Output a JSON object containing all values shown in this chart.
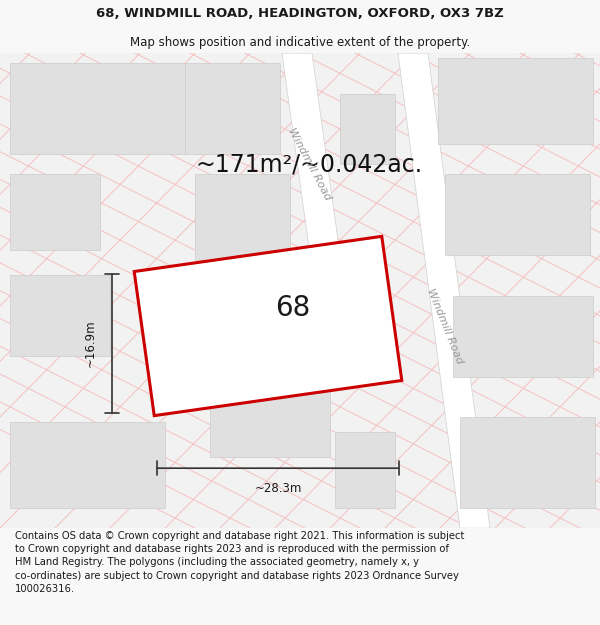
{
  "title": "68, WINDMILL ROAD, HEADINGTON, OXFORD, OX3 7BZ",
  "subtitle": "Map shows position and indicative extent of the property.",
  "area_text": "~171m²/~0.042ac.",
  "label_68": "68",
  "dim_width": "~28.3m",
  "dim_height": "~16.9m",
  "road_label_top": "Windmill Road",
  "road_label_right": "Windmill Road",
  "footer": "Contains OS data © Crown copyright and database right 2021. This information is subject\nto Crown copyright and database rights 2023 and is reproduced with the permission of\nHM Land Registry. The polygons (including the associated geometry, namely x, y\nco-ordinates) are subject to Crown copyright and database rights 2023 Ordnance Survey\n100026316.",
  "map_bg": "#f2f2f2",
  "road_color": "#ffffff",
  "building_fill": "#e0e0e0",
  "building_stroke": "#cccccc",
  "plot_stroke": "#cc0000",
  "plot_fill": "none",
  "grid_line_color": "#f5c0c0",
  "title_fontsize": 9.5,
  "subtitle_fontsize": 8.5,
  "area_fontsize": 17,
  "label_fontsize": 20,
  "footer_fontsize": 7.2
}
